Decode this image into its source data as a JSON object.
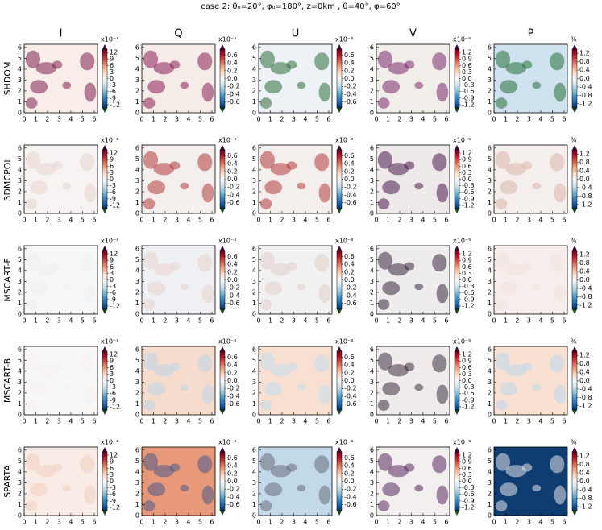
{
  "chart_data": {
    "type": "heatmap-grid",
    "title": "case 2: θ₀=20°, φ₀=180°, z=0km , θ=40°, φ=60°",
    "columns": [
      {
        "label": "I",
        "scale": "x10⁻³",
        "clim": [
          -13.5,
          13.5
        ],
        "ticks": [
          12,
          9,
          6,
          3,
          0,
          -3,
          -6,
          -9,
          -12
        ]
      },
      {
        "label": "Q",
        "scale": "x10⁻³",
        "clim": [
          -0.75,
          0.75
        ],
        "ticks": [
          0.6,
          0.4,
          0.2,
          {
            "value": 0,
            "label": "0.0"
          },
          -0.2,
          -0.4,
          -0.6
        ]
      },
      {
        "label": "U",
        "scale": "x10⁻³",
        "clim": [
          -0.75,
          0.75
        ],
        "ticks": [
          0.6,
          0.4,
          0.2,
          {
            "value": 0,
            "label": "0.0"
          },
          -0.2,
          -0.4,
          -0.6
        ]
      },
      {
        "label": "V",
        "scale": "x10⁻⁵",
        "clim": [
          -1.35,
          1.35
        ],
        "ticks": [
          1.2,
          0.9,
          0.6,
          0.3,
          {
            "value": 0,
            "label": "0.0"
          },
          -0.3,
          -0.6,
          -0.9,
          -1.2
        ]
      },
      {
        "label": "P",
        "scale": "%",
        "clim": [
          -1.4,
          1.4
        ],
        "ticks": [
          1.2,
          0.8,
          0.4,
          {
            "value": 0,
            "label": "0.0"
          },
          -0.4,
          -0.8,
          -1.2
        ]
      }
    ],
    "rows": [
      "SHDOM",
      "3DMCPOL",
      "MSCART-F",
      "MSCART-B",
      "SPARTA"
    ],
    "xlim": [
      0,
      6.28
    ],
    "ylim": [
      0,
      6.28
    ],
    "xticks": [
      0,
      1,
      2,
      3,
      4,
      5,
      6
    ],
    "yticks": [
      0,
      1,
      2,
      3,
      4,
      5,
      6
    ],
    "colormap": [
      "#053061",
      "#2166ac",
      "#4393c3",
      "#92c5de",
      "#d1e5f0",
      "#f7f7f7",
      "#fddbc7",
      "#f4a582",
      "#d6604d",
      "#b2182b",
      "#67001f"
    ],
    "extend_colors": [
      "#1b4a1b",
      "#3a0a3a"
    ],
    "panels": [
      [
        {
          "fill": "#f8ede8",
          "cloud": "#7b2050"
        },
        {
          "fill": "#f5ece8",
          "cloud": "#8a1f55"
        },
        {
          "fill": "#eef2f6",
          "cloud": "#2d6e3a"
        },
        {
          "fill": "#f1ede8",
          "cloud": "#7a2a70"
        },
        {
          "fill": "#cfe2ef",
          "cloud": "#2a6f3a"
        }
      ],
      [
        {
          "fill": "#f6f3f2",
          "cloud": "#e8d5d0"
        },
        {
          "fill": "#f4efec",
          "cloud": "#b03a3a"
        },
        {
          "fill": "#f4efec",
          "cloud": "#b03a3a"
        },
        {
          "fill": "#eeeaea",
          "cloud": "#4a1a4a"
        },
        {
          "fill": "#f4efed",
          "cloud": "#d9b4aa"
        }
      ],
      [
        {
          "fill": "#f7f7f7",
          "cloud": "#eeeeee"
        },
        {
          "fill": "#eff0f4",
          "cloud": "#e8d4cc"
        },
        {
          "fill": "#f2f1f2",
          "cloud": "#e0d0cc"
        },
        {
          "fill": "#eeecec",
          "cloud": "#3a2a40"
        },
        {
          "fill": "#f7eeeb",
          "cloud": "#f3e4df"
        }
      ],
      [
        {
          "fill": "#f7f7f7",
          "cloud": "#f5f0ee"
        },
        {
          "fill": "#f5dccd",
          "cloud": "#bcd6e9"
        },
        {
          "fill": "#f7dfd2",
          "cloud": "#c5dcec"
        },
        {
          "fill": "#f0ebea",
          "cloud": "#3c3040"
        },
        {
          "fill": "#f8e0d2",
          "cloud": "#bdd7ea"
        }
      ],
      [
        {
          "fill": "#f9ebe5",
          "cloud": "#f3cfc0"
        },
        {
          "fill": "#e8997a",
          "cloud": "#4a5a8a"
        },
        {
          "fill": "#c2d9ea",
          "cloud": "#6a6a7a"
        },
        {
          "fill": "#f2efee",
          "cloud": "#5a2a60"
        },
        {
          "fill": "#0f3d72",
          "cloud": "#e6e4ea"
        }
      ]
    ]
  }
}
